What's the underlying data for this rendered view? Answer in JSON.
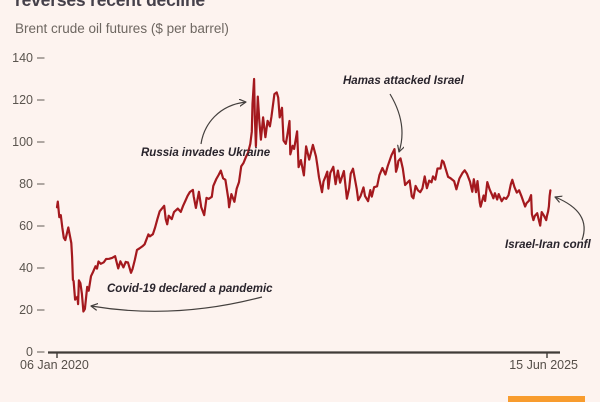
{
  "header": {
    "title_clipped": "reverses recent decline",
    "subtitle": "Brent crude oil futures ($ per barrel)"
  },
  "colors": {
    "background": "#fdf3ef",
    "line": "#a4191e",
    "axis": "#403b37",
    "tick": "#8d8680",
    "muted_text": "#5b554f",
    "annotation_text": "#29242c",
    "arrow": "#44403e",
    "logo_orange": "#f89c2e"
  },
  "chart_data": {
    "type": "line",
    "title": "reverses recent decline",
    "subtitle": "Brent crude oil futures ($ per barrel)",
    "ylabel": "$ per barrel",
    "ylim": [
      0,
      140
    ],
    "yticks": [
      0,
      20,
      40,
      60,
      80,
      100,
      120,
      140
    ],
    "grid": false,
    "x_axis": {
      "start_label": "06 Jan 2020",
      "end_label": "15 Jun 2025",
      "x_unit": "months since 06 Jan 2020"
    },
    "annotations": [
      {
        "text": "Covid-19 declared a pandemic",
        "points_to": {
          "m": 3.5,
          "value": 19.3
        }
      },
      {
        "text": "Russia invades Ukraine",
        "points_to": {
          "m": 26.1,
          "value": 130.0
        }
      },
      {
        "text": "Hamas attacked Israel",
        "points_to": {
          "m": 45.5,
          "value": 92.2
        }
      },
      {
        "text": "Israel-Iran confl",
        "points_to": {
          "m": 65.3,
          "value": 77.0
        }
      }
    ],
    "series": [
      {
        "name": "Brent crude oil futures ($ per barrel)",
        "points": [
          [
            0,
            68.9
          ],
          [
            0.1,
            71.6
          ],
          [
            0.3,
            64.2
          ],
          [
            0.5,
            65.2
          ],
          [
            0.7,
            59.3
          ],
          [
            0.9,
            54.4
          ],
          [
            1.1,
            53.3
          ],
          [
            1.5,
            59.3
          ],
          [
            1.9,
            51.9
          ],
          [
            2.0,
            45.3
          ],
          [
            2.1,
            34.4
          ],
          [
            2.2,
            33.8
          ],
          [
            2.4,
            24.9
          ],
          [
            2.7,
            26.3
          ],
          [
            2.8,
            22.8
          ],
          [
            2.9,
            34.1
          ],
          [
            3.1,
            32.8
          ],
          [
            3.3,
            27.7
          ],
          [
            3.5,
            19.3
          ],
          [
            3.7,
            20.5
          ],
          [
            4.0,
            31.0
          ],
          [
            4.2,
            29.2
          ],
          [
            4.5,
            36.1
          ],
          [
            4.8,
            38.3
          ],
          [
            5.1,
            40.8
          ],
          [
            5.3,
            39.7
          ],
          [
            5.5,
            43.1
          ],
          [
            5.8,
            42.0
          ],
          [
            6.2,
            42.7
          ],
          [
            6.5,
            44.3
          ],
          [
            6.9,
            44.4
          ],
          [
            7.3,
            44.8
          ],
          [
            7.7,
            45.6
          ],
          [
            8.1,
            39.8
          ],
          [
            8.4,
            43.2
          ],
          [
            8.8,
            40.3
          ],
          [
            9.1,
            42.9
          ],
          [
            9.4,
            42.6
          ],
          [
            9.8,
            37.7
          ],
          [
            10.0,
            39.5
          ],
          [
            10.3,
            43.8
          ],
          [
            10.6,
            48.6
          ],
          [
            10.9,
            49.3
          ],
          [
            11.3,
            50.3
          ],
          [
            11.6,
            51.3
          ],
          [
            12.1,
            56.0
          ],
          [
            12.3,
            55.1
          ],
          [
            12.7,
            56.1
          ],
          [
            13.0,
            59.3
          ],
          [
            13.3,
            63.3
          ],
          [
            13.6,
            67.0
          ],
          [
            14.2,
            69.6
          ],
          [
            14.4,
            63.3
          ],
          [
            14.6,
            60.8
          ],
          [
            14.8,
            64.9
          ],
          [
            15.2,
            63.3
          ],
          [
            15.5,
            66.6
          ],
          [
            15.7,
            67.3
          ],
          [
            16.0,
            68.3
          ],
          [
            16.4,
            66.7
          ],
          [
            16.7,
            69.6
          ],
          [
            17.0,
            71.9
          ],
          [
            17.3,
            74.4
          ],
          [
            17.6,
            76.2
          ],
          [
            18.0,
            77.2
          ],
          [
            18.1,
            74.1
          ],
          [
            18.4,
            68.6
          ],
          [
            18.8,
            76.3
          ],
          [
            19.1,
            69.0
          ],
          [
            19.5,
            65.2
          ],
          [
            19.8,
            73.4
          ],
          [
            20.1,
            72.9
          ],
          [
            20.5,
            73.9
          ],
          [
            20.7,
            79.1
          ],
          [
            21.1,
            82.4
          ],
          [
            21.4,
            84.3
          ],
          [
            21.7,
            86.4
          ],
          [
            22.0,
            82.7
          ],
          [
            22.3,
            82.0
          ],
          [
            22.7,
            72.7
          ],
          [
            22.8,
            68.9
          ],
          [
            23.1,
            75.2
          ],
          [
            23.5,
            71.5
          ],
          [
            23.8,
            77.8
          ],
          [
            24.1,
            80.9
          ],
          [
            24.4,
            88.4
          ],
          [
            24.7,
            90.0
          ],
          [
            25.0,
            92.7
          ],
          [
            25.3,
            94.8
          ],
          [
            25.6,
            99.1
          ],
          [
            25.8,
            104.9
          ],
          [
            25.9,
            118.1
          ],
          [
            26.1,
            130.0
          ],
          [
            26.2,
            112.7
          ],
          [
            26.35,
            98.0
          ],
          [
            26.6,
            121.6
          ],
          [
            26.8,
            110.2
          ],
          [
            27.0,
            101.1
          ],
          [
            27.3,
            111.7
          ],
          [
            27.6,
            102.3
          ],
          [
            27.9,
            110.1
          ],
          [
            28.2,
            107.5
          ],
          [
            28.4,
            111.9
          ],
          [
            28.8,
            122.8
          ],
          [
            29.1,
            123.6
          ],
          [
            29.3,
            121.2
          ],
          [
            29.5,
            111.7
          ],
          [
            29.8,
            116.3
          ],
          [
            30.0,
            100.7
          ],
          [
            30.3,
            99.1
          ],
          [
            30.5,
            103.2
          ],
          [
            30.8,
            110.0
          ],
          [
            30.9,
            94.1
          ],
          [
            31.2,
            98.2
          ],
          [
            31.4,
            96.7
          ],
          [
            31.8,
            105.1
          ],
          [
            32.0,
            88.0
          ],
          [
            32.3,
            91.4
          ],
          [
            32.7,
            84.1
          ],
          [
            33.0,
            97.9
          ],
          [
            33.4,
            91.6
          ],
          [
            33.7,
            95.7
          ],
          [
            33.9,
            98.6
          ],
          [
            34.3,
            93.1
          ],
          [
            34.5,
            88.4
          ],
          [
            34.7,
            83.2
          ],
          [
            35.1,
            76.1
          ],
          [
            35.3,
            81.2
          ],
          [
            35.6,
            83.9
          ],
          [
            35.8,
            85.9
          ],
          [
            35.95,
            77.8
          ],
          [
            36.2,
            85.3
          ],
          [
            36.6,
            88.2
          ],
          [
            36.9,
            79.9
          ],
          [
            37.2,
            86.4
          ],
          [
            37.5,
            80.6
          ],
          [
            38.0,
            86.2
          ],
          [
            38.4,
            73.0
          ],
          [
            38.7,
            78.1
          ],
          [
            38.9,
            84.9
          ],
          [
            39.2,
            87.3
          ],
          [
            39.7,
            77.7
          ],
          [
            39.9,
            72.3
          ],
          [
            40.2,
            74.2
          ],
          [
            40.6,
            78.4
          ],
          [
            40.8,
            74.3
          ],
          [
            41.2,
            71.8
          ],
          [
            41.5,
            77.1
          ],
          [
            41.7,
            74.0
          ],
          [
            42.0,
            78.5
          ],
          [
            42.4,
            78.9
          ],
          [
            42.7,
            84.2
          ],
          [
            43.1,
            87.6
          ],
          [
            43.5,
            84.5
          ],
          [
            43.8,
            88.5
          ],
          [
            44.3,
            93.7
          ],
          [
            44.7,
            96.6
          ],
          [
            44.9,
            85.8
          ],
          [
            45.1,
            88.2
          ],
          [
            45.2,
            90.9
          ],
          [
            45.5,
            92.2
          ],
          [
            45.8,
            87.4
          ],
          [
            46.1,
            79.5
          ],
          [
            46.4,
            80.6
          ],
          [
            46.7,
            81.7
          ],
          [
            47.0,
            74.1
          ],
          [
            47.2,
            73.2
          ],
          [
            47.5,
            79.1
          ],
          [
            47.8,
            77.0
          ],
          [
            48.1,
            76.1
          ],
          [
            48.4,
            77.9
          ],
          [
            48.7,
            83.6
          ],
          [
            49.0,
            78.0
          ],
          [
            49.3,
            81.6
          ],
          [
            49.6,
            80.8
          ],
          [
            49.8,
            83.6
          ],
          [
            50.1,
            82.1
          ],
          [
            50.4,
            87.4
          ],
          [
            50.8,
            87.4
          ],
          [
            51.0,
            91.2
          ],
          [
            51.2,
            90.5
          ],
          [
            51.5,
            87.0
          ],
          [
            51.8,
            83.4
          ],
          [
            52.1,
            82.8
          ],
          [
            52.6,
            81.4
          ],
          [
            52.9,
            77.5
          ],
          [
            53.3,
            82.6
          ],
          [
            53.7,
            85.2
          ],
          [
            54.0,
            86.5
          ],
          [
            54.3,
            84.8
          ],
          [
            54.7,
            81.1
          ],
          [
            55.0,
            76.3
          ],
          [
            55.2,
            82.3
          ],
          [
            55.5,
            76.1
          ],
          [
            55.7,
            81.4
          ],
          [
            56.0,
            71.1
          ],
          [
            56.1,
            69.2
          ],
          [
            56.5,
            74.5
          ],
          [
            56.7,
            71.9
          ],
          [
            57.0,
            80.9
          ],
          [
            57.3,
            77.5
          ],
          [
            57.6,
            75.0
          ],
          [
            57.8,
            73.2
          ],
          [
            58.0,
            75.6
          ],
          [
            58.3,
            72.6
          ],
          [
            58.5,
            75.2
          ],
          [
            58.9,
            71.8
          ],
          [
            59.2,
            73.5
          ],
          [
            59.5,
            72.9
          ],
          [
            59.8,
            74.6
          ],
          [
            60.1,
            79.8
          ],
          [
            60.3,
            82.0
          ],
          [
            60.6,
            78.5
          ],
          [
            60.9,
            75.9
          ],
          [
            61.2,
            77.0
          ],
          [
            61.5,
            74.4
          ],
          [
            62.0,
            69.3
          ],
          [
            62.2,
            70.9
          ],
          [
            62.5,
            72.0
          ],
          [
            62.8,
            74.7
          ],
          [
            62.9,
            65.6
          ],
          [
            63.1,
            62.8
          ],
          [
            63.3,
            64.9
          ],
          [
            63.6,
            66.1
          ],
          [
            63.8,
            63.1
          ],
          [
            64.0,
            60.2
          ],
          [
            64.2,
            66.6
          ],
          [
            64.5,
            64.9
          ],
          [
            64.8,
            62.8
          ],
          [
            64.9,
            64.9
          ],
          [
            65.05,
            66.9
          ],
          [
            65.15,
            69.4
          ],
          [
            65.25,
            74.2
          ],
          [
            65.35,
            77.0
          ]
        ]
      }
    ]
  }
}
